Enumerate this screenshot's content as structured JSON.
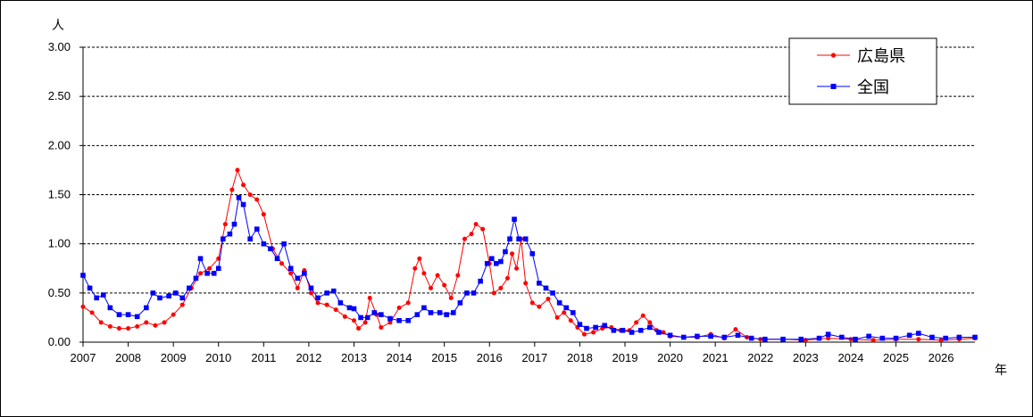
{
  "chart_data": {
    "type": "line",
    "ylabel": "人",
    "xlabel": "年",
    "ylim": [
      0,
      3.0
    ],
    "y_ticks": [
      "0.00",
      "0.50",
      "1.00",
      "1.50",
      "2.00",
      "2.50",
      "3.00"
    ],
    "x_range": [
      2007.0,
      2026.75
    ],
    "x_tick_labels": [
      "2007",
      "2008",
      "2009",
      "2010",
      "2011",
      "2012",
      "2013",
      "2014",
      "2015",
      "2016",
      "2017",
      "2018",
      "2019",
      "2020",
      "2021",
      "2022",
      "2023",
      "2024",
      "2025",
      "2026"
    ],
    "grid": "horizontal dashed",
    "legend_position": "top-right",
    "series": [
      {
        "name": "広島県",
        "color": "#ff0000",
        "marker": "circle",
        "points": [
          [
            2007.0,
            0.36
          ],
          [
            2007.2,
            0.3
          ],
          [
            2007.4,
            0.2
          ],
          [
            2007.6,
            0.16
          ],
          [
            2007.8,
            0.14
          ],
          [
            2008.0,
            0.14
          ],
          [
            2008.2,
            0.16
          ],
          [
            2008.4,
            0.2
          ],
          [
            2008.6,
            0.17
          ],
          [
            2008.8,
            0.2
          ],
          [
            2009.0,
            0.28
          ],
          [
            2009.2,
            0.38
          ],
          [
            2009.4,
            0.55
          ],
          [
            2009.6,
            0.7
          ],
          [
            2009.8,
            0.75
          ],
          [
            2010.0,
            0.85
          ],
          [
            2010.15,
            1.2
          ],
          [
            2010.3,
            1.55
          ],
          [
            2010.42,
            1.75
          ],
          [
            2010.55,
            1.6
          ],
          [
            2010.7,
            1.5
          ],
          [
            2010.85,
            1.45
          ],
          [
            2011.0,
            1.3
          ],
          [
            2011.2,
            0.95
          ],
          [
            2011.4,
            0.8
          ],
          [
            2011.6,
            0.7
          ],
          [
            2011.75,
            0.55
          ],
          [
            2011.9,
            0.73
          ],
          [
            2012.05,
            0.5
          ],
          [
            2012.2,
            0.4
          ],
          [
            2012.4,
            0.38
          ],
          [
            2012.6,
            0.33
          ],
          [
            2012.8,
            0.26
          ],
          [
            2013.0,
            0.22
          ],
          [
            2013.1,
            0.14
          ],
          [
            2013.25,
            0.2
          ],
          [
            2013.35,
            0.45
          ],
          [
            2013.5,
            0.28
          ],
          [
            2013.6,
            0.15
          ],
          [
            2013.8,
            0.2
          ],
          [
            2014.0,
            0.35
          ],
          [
            2014.2,
            0.4
          ],
          [
            2014.35,
            0.75
          ],
          [
            2014.45,
            0.85
          ],
          [
            2014.55,
            0.7
          ],
          [
            2014.7,
            0.55
          ],
          [
            2014.85,
            0.68
          ],
          [
            2015.0,
            0.58
          ],
          [
            2015.15,
            0.45
          ],
          [
            2015.3,
            0.68
          ],
          [
            2015.45,
            1.05
          ],
          [
            2015.6,
            1.1
          ],
          [
            2015.7,
            1.2
          ],
          [
            2015.85,
            1.15
          ],
          [
            2016.0,
            0.8
          ],
          [
            2016.1,
            0.5
          ],
          [
            2016.25,
            0.55
          ],
          [
            2016.4,
            0.65
          ],
          [
            2016.5,
            0.9
          ],
          [
            2016.6,
            0.75
          ],
          [
            2016.7,
            1.05
          ],
          [
            2016.8,
            0.6
          ],
          [
            2016.95,
            0.4
          ],
          [
            2017.1,
            0.36
          ],
          [
            2017.3,
            0.44
          ],
          [
            2017.5,
            0.25
          ],
          [
            2017.65,
            0.3
          ],
          [
            2017.8,
            0.22
          ],
          [
            2017.95,
            0.15
          ],
          [
            2018.1,
            0.08
          ],
          [
            2018.3,
            0.1
          ],
          [
            2018.5,
            0.14
          ],
          [
            2018.7,
            0.15
          ],
          [
            2018.9,
            0.12
          ],
          [
            2019.1,
            0.12
          ],
          [
            2019.25,
            0.2
          ],
          [
            2019.4,
            0.27
          ],
          [
            2019.55,
            0.2
          ],
          [
            2019.7,
            0.12
          ],
          [
            2019.85,
            0.1
          ],
          [
            2020.0,
            0.06
          ],
          [
            2020.3,
            0.05
          ],
          [
            2020.6,
            0.05
          ],
          [
            2020.9,
            0.08
          ],
          [
            2021.2,
            0.04
          ],
          [
            2021.45,
            0.13
          ],
          [
            2021.7,
            0.05
          ],
          [
            2022.0,
            0.03
          ],
          [
            2022.5,
            0.03
          ],
          [
            2023.0,
            0.02
          ],
          [
            2023.5,
            0.04
          ],
          [
            2024.0,
            0.03
          ],
          [
            2024.5,
            0.02
          ],
          [
            2025.0,
            0.03
          ],
          [
            2025.5,
            0.03
          ],
          [
            2026.0,
            0.02
          ],
          [
            2026.4,
            0.03
          ],
          [
            2026.75,
            0.04
          ]
        ]
      },
      {
        "name": "全国",
        "color": "#0000ff",
        "marker": "square",
        "points": [
          [
            2007.0,
            0.68
          ],
          [
            2007.15,
            0.55
          ],
          [
            2007.3,
            0.45
          ],
          [
            2007.45,
            0.48
          ],
          [
            2007.6,
            0.35
          ],
          [
            2007.8,
            0.28
          ],
          [
            2008.0,
            0.28
          ],
          [
            2008.2,
            0.26
          ],
          [
            2008.4,
            0.35
          ],
          [
            2008.55,
            0.5
          ],
          [
            2008.7,
            0.45
          ],
          [
            2008.9,
            0.47
          ],
          [
            2009.05,
            0.5
          ],
          [
            2009.2,
            0.45
          ],
          [
            2009.35,
            0.55
          ],
          [
            2009.5,
            0.65
          ],
          [
            2009.6,
            0.85
          ],
          [
            2009.75,
            0.7
          ],
          [
            2009.9,
            0.7
          ],
          [
            2010.0,
            0.75
          ],
          [
            2010.1,
            1.05
          ],
          [
            2010.25,
            1.1
          ],
          [
            2010.35,
            1.2
          ],
          [
            2010.45,
            1.47
          ],
          [
            2010.55,
            1.4
          ],
          [
            2010.7,
            1.05
          ],
          [
            2010.85,
            1.15
          ],
          [
            2011.0,
            1.0
          ],
          [
            2011.15,
            0.95
          ],
          [
            2011.3,
            0.85
          ],
          [
            2011.45,
            1.0
          ],
          [
            2011.6,
            0.75
          ],
          [
            2011.75,
            0.65
          ],
          [
            2011.9,
            0.7
          ],
          [
            2012.05,
            0.55
          ],
          [
            2012.2,
            0.45
          ],
          [
            2012.4,
            0.5
          ],
          [
            2012.55,
            0.52
          ],
          [
            2012.7,
            0.4
          ],
          [
            2012.9,
            0.35
          ],
          [
            2013.0,
            0.34
          ],
          [
            2013.15,
            0.25
          ],
          [
            2013.3,
            0.25
          ],
          [
            2013.45,
            0.3
          ],
          [
            2013.6,
            0.28
          ],
          [
            2013.8,
            0.24
          ],
          [
            2014.0,
            0.22
          ],
          [
            2014.2,
            0.22
          ],
          [
            2014.4,
            0.28
          ],
          [
            2014.55,
            0.35
          ],
          [
            2014.7,
            0.3
          ],
          [
            2014.9,
            0.3
          ],
          [
            2015.05,
            0.28
          ],
          [
            2015.2,
            0.3
          ],
          [
            2015.35,
            0.4
          ],
          [
            2015.5,
            0.5
          ],
          [
            2015.65,
            0.5
          ],
          [
            2015.8,
            0.62
          ],
          [
            2015.95,
            0.8
          ],
          [
            2016.05,
            0.85
          ],
          [
            2016.15,
            0.8
          ],
          [
            2016.25,
            0.82
          ],
          [
            2016.35,
            0.92
          ],
          [
            2016.45,
            1.05
          ],
          [
            2016.55,
            1.25
          ],
          [
            2016.65,
            1.05
          ],
          [
            2016.8,
            1.05
          ],
          [
            2016.95,
            0.9
          ],
          [
            2017.1,
            0.6
          ],
          [
            2017.25,
            0.55
          ],
          [
            2017.4,
            0.5
          ],
          [
            2017.55,
            0.4
          ],
          [
            2017.7,
            0.35
          ],
          [
            2017.85,
            0.3
          ],
          [
            2018.0,
            0.18
          ],
          [
            2018.15,
            0.14
          ],
          [
            2018.35,
            0.15
          ],
          [
            2018.55,
            0.17
          ],
          [
            2018.75,
            0.12
          ],
          [
            2018.95,
            0.12
          ],
          [
            2019.15,
            0.1
          ],
          [
            2019.35,
            0.12
          ],
          [
            2019.55,
            0.15
          ],
          [
            2019.75,
            0.1
          ],
          [
            2020.0,
            0.07
          ],
          [
            2020.3,
            0.05
          ],
          [
            2020.6,
            0.06
          ],
          [
            2020.9,
            0.06
          ],
          [
            2021.2,
            0.05
          ],
          [
            2021.5,
            0.07
          ],
          [
            2021.8,
            0.04
          ],
          [
            2022.1,
            0.03
          ],
          [
            2022.5,
            0.03
          ],
          [
            2022.9,
            0.03
          ],
          [
            2023.3,
            0.04
          ],
          [
            2023.5,
            0.08
          ],
          [
            2023.8,
            0.05
          ],
          [
            2024.1,
            0.03
          ],
          [
            2024.4,
            0.06
          ],
          [
            2024.7,
            0.04
          ],
          [
            2025.0,
            0.04
          ],
          [
            2025.3,
            0.07
          ],
          [
            2025.5,
            0.09
          ],
          [
            2025.8,
            0.05
          ],
          [
            2026.1,
            0.04
          ],
          [
            2026.4,
            0.05
          ],
          [
            2026.75,
            0.05
          ]
        ]
      }
    ]
  }
}
